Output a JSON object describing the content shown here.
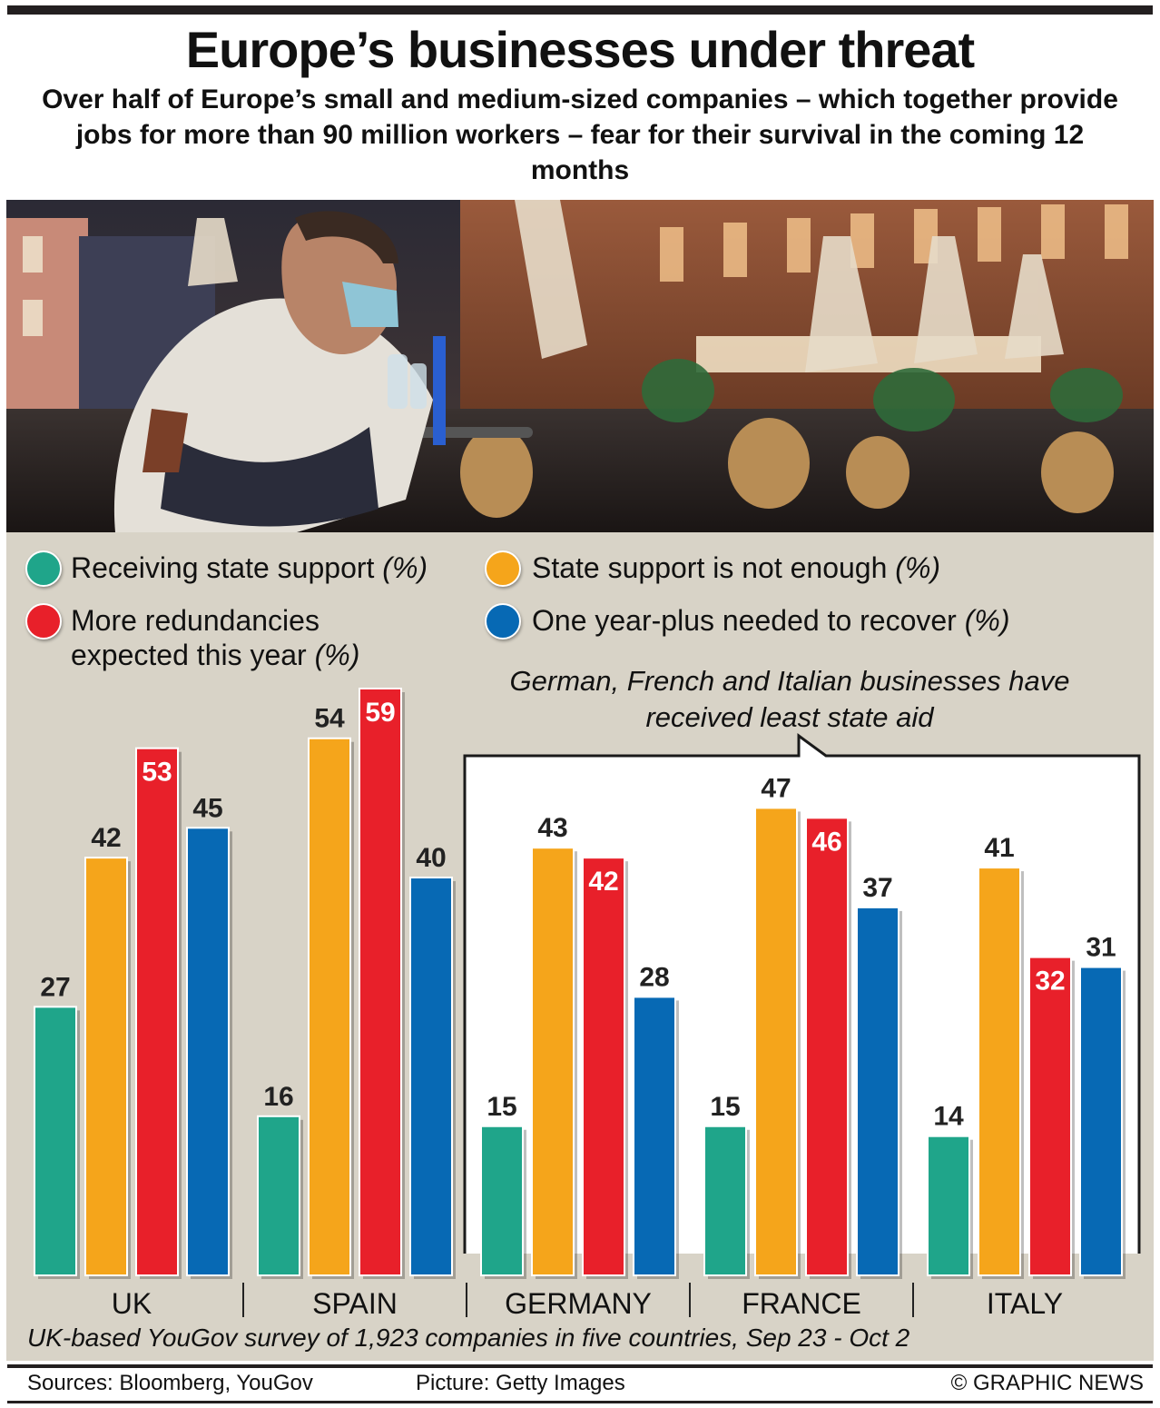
{
  "header": {
    "title": "Europe’s businesses under threat",
    "subtitle": "Over half of Europe’s small and medium-sized companies – which together provide jobs for more than 90 million workers – fear for their survival in the coming 12 months"
  },
  "legend": [
    {
      "label": "Receiving state support",
      "unit": "(%)",
      "color": "#1fa58a"
    },
    {
      "label": "State support is not enough",
      "unit": "(%)",
      "color": "#f5a51b"
    },
    {
      "label": "More redundancies expected this year",
      "unit": "(%)",
      "color": "#e8202a"
    },
    {
      "label": "One year-plus needed to recover",
      "unit": "(%)",
      "color": "#0769b4"
    }
  ],
  "annotation": "German, French and Italian businesses have received least state aid",
  "chart_data": {
    "type": "bar",
    "categories": [
      "UK",
      "SPAIN",
      "GERMANY",
      "FRANCE",
      "ITALY"
    ],
    "series": [
      {
        "name": "Receiving state support (%)",
        "color": "#1fa58a",
        "values": [
          27,
          16,
          15,
          15,
          14
        ]
      },
      {
        "name": "State support is not enough (%)",
        "color": "#f5a51b",
        "values": [
          42,
          54,
          43,
          47,
          41
        ]
      },
      {
        "name": "More redundancies expected this year (%)",
        "color": "#e8202a",
        "values": [
          53,
          59,
          42,
          46,
          32
        ]
      },
      {
        "name": "One year-plus needed to recover (%)",
        "color": "#0769b4",
        "values": [
          45,
          40,
          28,
          37,
          31
        ]
      }
    ],
    "ylim": [
      0,
      59
    ]
  },
  "footer": {
    "survey_note": "UK-based YouGov survey of 1,923 companies in five countries, Sep 23 - Oct 2",
    "sources": "Sources: Bloomberg, YouGov",
    "picture_credit": "Picture: Getty Images",
    "copyright": "© GRAPHIC NEWS"
  }
}
